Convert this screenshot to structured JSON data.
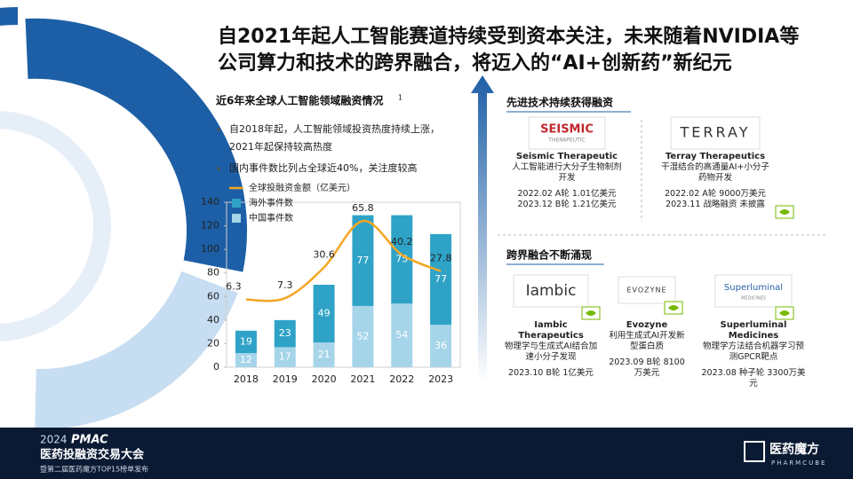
{
  "title": [
    "自2021年起人工智能赛道持续受到资本关注，未来随着NVIDIA等",
    "公司算力和技术的跨界融合，将迈入的“AI+创新药”新纪元"
  ],
  "chart_data": {
    "type": "bar",
    "title": "近6年来全球人工智能领域融资情况",
    "title_note": "1",
    "categories": [
      "2018",
      "2019",
      "2020",
      "2021",
      "2022",
      "2023"
    ],
    "stacked": true,
    "series": [
      {
        "name": "中国事件数",
        "color": "#a6d5ea",
        "values": [
          12,
          17,
          21,
          52,
          54,
          36
        ]
      },
      {
        "name": "海外事件数",
        "color": "#2fa3c7",
        "values": [
          19,
          23,
          49,
          77,
          75,
          77
        ]
      },
      {
        "name": "全球投融资金额（亿美元）",
        "color": "#f5a623",
        "type": "line",
        "axis": "y2",
        "values": [
          6.3,
          7.3,
          30.6,
          65.8,
          40.2,
          27.8
        ]
      }
    ],
    "ylim": [
      0,
      140
    ],
    "yticks": [
      0,
      20,
      40,
      60,
      80,
      100,
      120,
      140
    ],
    "y2lim": [
      -45,
      80
    ]
  },
  "bullets": [
    "自2018年起，人工智能领域投资热度持续上涨，2021年起保持较高热度",
    "国内事件数比列占全球近40%，关注度较高"
  ],
  "section1": {
    "title": "先进技术持续获得融资",
    "companies": [
      {
        "logo": "SEISMIC",
        "logo_sub": "THERAPEUTIC",
        "name": "Seismic Therapeutic",
        "desc": "人工智能进行大分子生物制剂开发",
        "deals": [
          "2022.02  A轮 1.01亿美元",
          "2023.12  B轮 1.21亿美元"
        ]
      },
      {
        "logo": "TERRAY",
        "name": "Terray Therapeutics",
        "desc": "干湿结合的高通量AI+小分子药物开发",
        "deals": [
          "2022.02  A轮 9000万美元",
          "2023.11  战略融资 未披露"
        ]
      }
    ]
  },
  "section2": {
    "title": "跨界融合不断涌现",
    "companies": [
      {
        "logo": "Iambic",
        "name": "Iambic Therapeutics",
        "desc": "物理学与生成式AI结合加速小分子发现",
        "deals": [
          "2023.10  B轮 1亿美元"
        ]
      },
      {
        "logo": "EVOZYNE",
        "name": "Evozyne",
        "desc": "利用生成式AI开发新型蛋白质",
        "deals": [
          "2023.09  B轮 8100万美元"
        ]
      },
      {
        "logo": "Superluminal",
        "logo_sub": "MEDICINES",
        "name": "Superluminal Medicines",
        "desc": "物理学方法结合机器学习预测GPCR靶点",
        "deals": [
          "2023.08  种子轮 3300万美元"
        ]
      }
    ]
  },
  "footer": {
    "year": "2024",
    "brand": "PMAC",
    "event": "医药投融资交易大会",
    "sub": "暨第二届医药魔方TOP15榜单发布",
    "logo": "医药魔方",
    "logo_sub": "PHARMCUBE"
  }
}
